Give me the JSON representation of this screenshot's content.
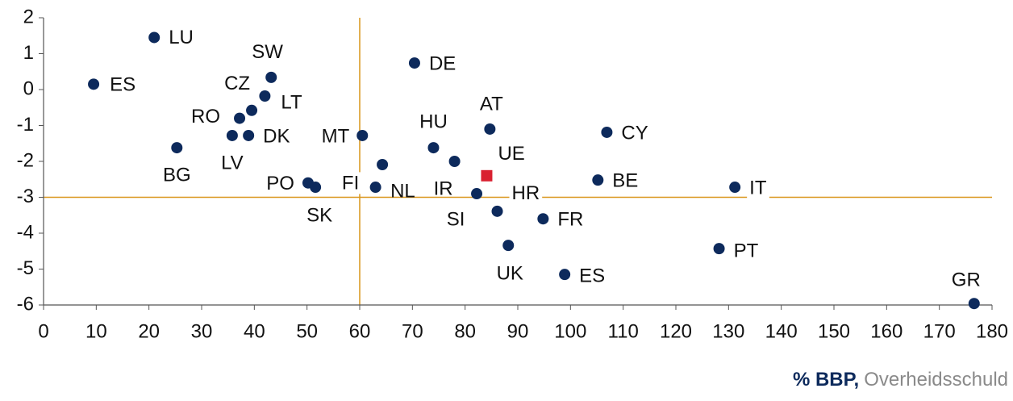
{
  "chart_data": {
    "type": "scatter",
    "x_label_unit": "% BBP,",
    "x_label": "Overheidsschuld",
    "xlim": [
      0,
      180
    ],
    "xticks": [
      0,
      10,
      20,
      30,
      40,
      50,
      60,
      70,
      80,
      90,
      100,
      110,
      120,
      130,
      140,
      150,
      160,
      170,
      180
    ],
    "ylim": [
      -6,
      2
    ],
    "yticks": [
      -6,
      -5,
      -4,
      -3,
      -2,
      -1,
      0,
      1,
      2
    ],
    "reference_lines": {
      "x": 60,
      "y": -3,
      "color": "#d9961a"
    },
    "series": [
      {
        "color": "#0d2a5c",
        "marker": "circle",
        "labels": [
          "ES",
          "LU",
          "SW",
          "LT",
          "CZ",
          "RO",
          "LV",
          "DK",
          "BG",
          "MT",
          "DE",
          "HU",
          "AT",
          "CY",
          "IR",
          "NL",
          "FI",
          "PO",
          "SK",
          "SI",
          "HR",
          "FR",
          "BE",
          "IT",
          "PT",
          "UK",
          "ES",
          "GR"
        ],
        "x": [
          9.5,
          21,
          43.2,
          42,
          39.5,
          37.2,
          35.8,
          38.9,
          25.3,
          60.5,
          70.4,
          74,
          84.7,
          106.9,
          78,
          64.3,
          63,
          50.2,
          51.6,
          82.2,
          86.1,
          94.8,
          105.2,
          131.2,
          128.2,
          88.2,
          98.9,
          176.6
        ],
        "values": [
          0.15,
          1.45,
          0.34,
          -0.18,
          -0.58,
          -0.8,
          -1.28,
          -1.28,
          -1.62,
          -1.28,
          0.74,
          -1.62,
          -1.1,
          -1.19,
          -2.0,
          -2.09,
          -2.72,
          -2.6,
          -2.72,
          -2.9,
          -3.39,
          -3.6,
          -2.52,
          -2.72,
          -4.43,
          -4.34,
          -5.15,
          -5.96
        ]
      },
      {
        "color": "#d92030",
        "marker": "square",
        "labels": [
          "UE"
        ],
        "x": [
          84.1
        ],
        "values": [
          -2.4
        ]
      }
    ]
  }
}
